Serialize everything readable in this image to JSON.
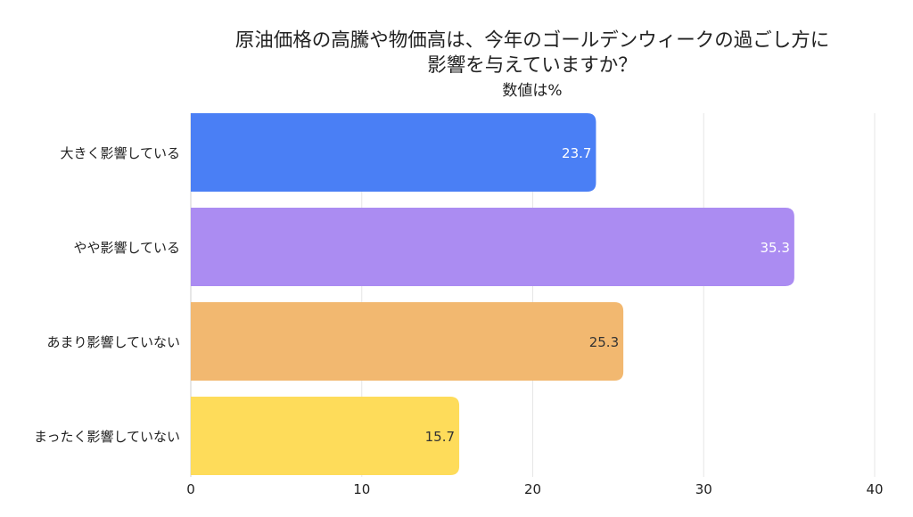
{
  "chart_data": {
    "type": "bar",
    "orientation": "horizontal",
    "title_lines": [
      "原油価格の高騰や物価高は、今年のゴールデンウィークの過ごし方に",
      "影響を与えていますか？"
    ],
    "subtitle": "数値は%",
    "categories": [
      "大きく影響している",
      "やや影響している",
      "あまり影響していない",
      "まったく影響していない"
    ],
    "values": [
      23.7,
      35.3,
      25.3,
      15.7
    ],
    "value_labels": [
      "23.7",
      "35.3",
      "25.3",
      "15.7"
    ],
    "colors": [
      "#4a7ff5",
      "#ab8cf2",
      "#f2b870",
      "#fedc5a"
    ],
    "label_colors": [
      "#ffffff",
      "#ffffff",
      "#333333",
      "#333333"
    ],
    "xlim": [
      0,
      40
    ],
    "xticks": [
      0,
      10,
      20,
      30,
      40
    ],
    "xtick_labels": [
      "0",
      "10",
      "20",
      "30",
      "40"
    ],
    "grid": true,
    "xlabel": "",
    "ylabel": ""
  }
}
